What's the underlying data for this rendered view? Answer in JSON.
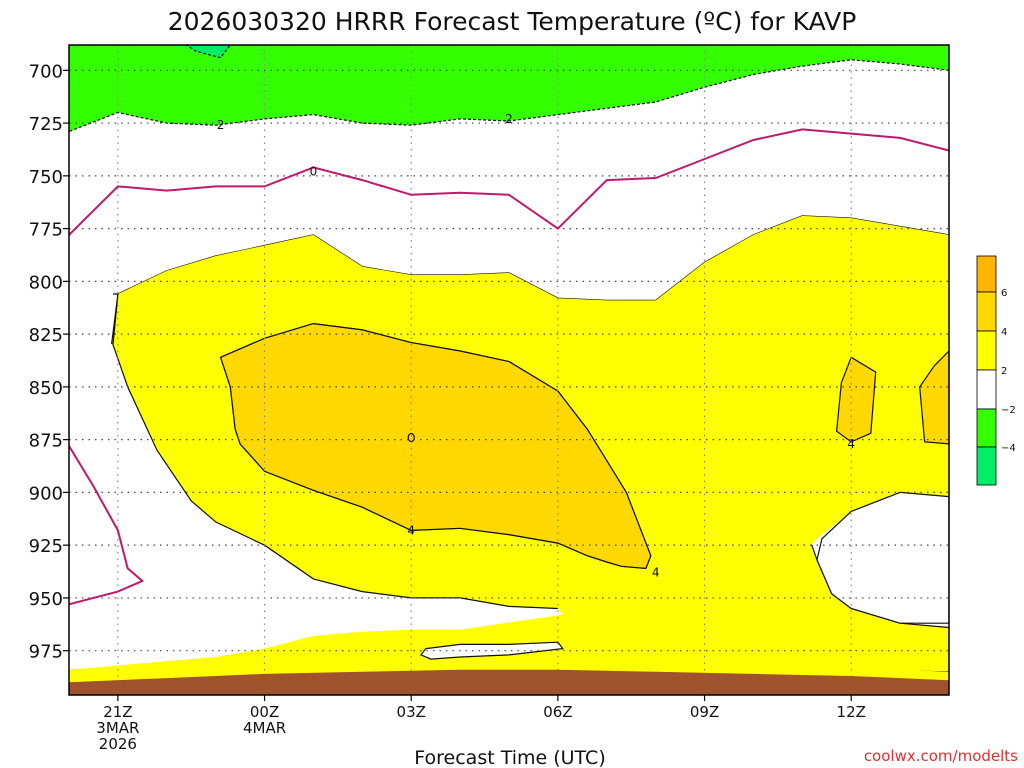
{
  "chart_data": {
    "type": "contour",
    "title": "2026030320 HRRR Forecast Temperature (ºC) for KAVP",
    "xlabel": "Forecast Time (UTC)",
    "ylabel": "",
    "credit": "coolwx.com/modelts",
    "x_range_hours": [
      -1,
      17
    ],
    "y_range_hpa": [
      688,
      996
    ],
    "y_ticks": [
      700,
      725,
      750,
      775,
      800,
      825,
      850,
      875,
      900,
      925,
      950,
      975
    ],
    "x_ticks": [
      {
        "hour": 0,
        "lines": [
          "21Z",
          "3MAR",
          "2026"
        ]
      },
      {
        "hour": 3,
        "lines": [
          "00Z",
          "4MAR"
        ]
      },
      {
        "hour": 6,
        "lines": [
          "03Z"
        ]
      },
      {
        "hour": 9,
        "lines": [
          "06Z"
        ]
      },
      {
        "hour": 12,
        "lines": [
          "09Z"
        ]
      },
      {
        "hour": 15,
        "lines": [
          "12Z"
        ]
      }
    ],
    "colorbar": {
      "levels": [
        6,
        4,
        2,
        -2,
        -4
      ],
      "labels": [
        "6",
        "4",
        "2",
        "−2",
        "−4"
      ],
      "colors": {
        "above6": "#ffb400",
        "4to6": "#ffd800",
        "2to4": "#ffff00",
        "m2to2": "#ffffff",
        "m4tom2": "#33ff00",
        "below_m4": "#00ee66"
      }
    },
    "colors": {
      "zero_contour": "#c0186a",
      "ground": "#a0522d",
      "contour_line": "#111111"
    },
    "contour_labels": [
      {
        "text": "2",
        "hour": 2.1,
        "hpa": 726
      },
      {
        "text": "2",
        "hour": 8.0,
        "hpa": 723
      },
      {
        "text": "0",
        "hour": 4.0,
        "hpa": 748
      },
      {
        "text": "4",
        "hour": 6.0,
        "hpa": 918
      },
      {
        "text": "4",
        "hour": 11.0,
        "hpa": 938
      },
      {
        "text": "4",
        "hour": 15.0,
        "hpa": 877
      }
    ],
    "regions": [
      {
        "name": "green-region-top",
        "fill": "#33ff00",
        "stroke": "#111111",
        "dash": true,
        "points": [
          [
            -1,
            688
          ],
          [
            17,
            688
          ],
          [
            17,
            700
          ],
          [
            16,
            697
          ],
          [
            15,
            695
          ],
          [
            14,
            698
          ],
          [
            13,
            702
          ],
          [
            12,
            708
          ],
          [
            11,
            715
          ],
          [
            10,
            718
          ],
          [
            9,
            721
          ],
          [
            8,
            724
          ],
          [
            7,
            723
          ],
          [
            6,
            726
          ],
          [
            5,
            725
          ],
          [
            4,
            721
          ],
          [
            3,
            723
          ],
          [
            2,
            726
          ],
          [
            1,
            725
          ],
          [
            0,
            720
          ],
          [
            -1,
            729
          ]
        ]
      },
      {
        "name": "green-patch-top-left",
        "fill": "#00ee66",
        "stroke": "#111111",
        "dash": true,
        "points": [
          [
            1.4,
            688
          ],
          [
            2.3,
            688
          ],
          [
            2.1,
            694
          ],
          [
            1.6,
            691
          ]
        ]
      },
      {
        "name": "yellow-region",
        "fill": "#ffff00",
        "stroke": "#111111",
        "dash": false,
        "points": [
          [
            0,
            806
          ],
          [
            1,
            795
          ],
          [
            2,
            788
          ],
          [
            3,
            783
          ],
          [
            4,
            778
          ],
          [
            5,
            793
          ],
          [
            6,
            797
          ],
          [
            7,
            797
          ],
          [
            8,
            796
          ],
          [
            9,
            808
          ],
          [
            10,
            809
          ],
          [
            11,
            809
          ],
          [
            12,
            791
          ],
          [
            13,
            778
          ],
          [
            14,
            769
          ],
          [
            15,
            770
          ],
          [
            16,
            774
          ],
          [
            17,
            778
          ],
          [
            17,
            902
          ],
          [
            16,
            901
          ],
          [
            15,
            903
          ],
          [
            14,
            912
          ],
          [
            14.3,
            932
          ],
          [
            14.6,
            948
          ],
          [
            15,
            955
          ],
          [
            16,
            962
          ],
          [
            17,
            964
          ],
          [
            17,
            985
          ],
          [
            10,
            982
          ],
          [
            8,
            981
          ],
          [
            6,
            980
          ],
          [
            4,
            980
          ],
          [
            2,
            982
          ],
          [
            -1,
            985
          ],
          [
            -1,
            984
          ],
          [
            0.7,
            983
          ],
          [
            1,
            955
          ],
          [
            2,
            960
          ],
          [
            3,
            947
          ],
          [
            4,
            936
          ],
          [
            5,
            941
          ],
          [
            6,
            952
          ],
          [
            7,
            948
          ],
          [
            8,
            962
          ],
          [
            9,
            981
          ],
          [
            11,
            984
          ],
          [
            12,
            990
          ],
          [
            -1,
            990
          ]
        ]
      },
      {
        "name": "yellow-region-lower",
        "fill": "#ffff00",
        "stroke": "none",
        "dash": false,
        "points": [
          [
            -0.1,
            830
          ],
          [
            0.2,
            850
          ],
          [
            0.8,
            880
          ],
          [
            1.5,
            904
          ],
          [
            2,
            914
          ],
          [
            3,
            925
          ],
          [
            4,
            941
          ],
          [
            5,
            947
          ],
          [
            6,
            950
          ],
          [
            7,
            950
          ],
          [
            8,
            954
          ],
          [
            9,
            955
          ],
          [
            9.1,
            958
          ],
          [
            7,
            965
          ],
          [
            6,
            965
          ],
          [
            5,
            966
          ],
          [
            4,
            968
          ],
          [
            3,
            974
          ],
          [
            2,
            978
          ],
          [
            1,
            980
          ],
          [
            -1,
            984
          ],
          [
            -1,
            996
          ],
          [
            17,
            996
          ],
          [
            17,
            990
          ],
          [
            17,
            985
          ],
          [
            16,
            984
          ],
          [
            15,
            980
          ],
          [
            14,
            972
          ],
          [
            14,
            930
          ],
          [
            14.3,
            922
          ],
          [
            15,
            909
          ],
          [
            16,
            900
          ],
          [
            17,
            902
          ],
          [
            17,
            778
          ],
          [
            16,
            774
          ],
          [
            15,
            770
          ],
          [
            14,
            769
          ],
          [
            13,
            778
          ],
          [
            12,
            791
          ],
          [
            11,
            809
          ],
          [
            10,
            809
          ],
          [
            9,
            808
          ],
          [
            8,
            796
          ],
          [
            7,
            797
          ],
          [
            6,
            797
          ],
          [
            5,
            793
          ],
          [
            4,
            778
          ],
          [
            3,
            783
          ],
          [
            2,
            788
          ],
          [
            1,
            795
          ],
          [
            0,
            806
          ]
        ]
      },
      {
        "name": "orange-core",
        "fill": "#ffd800",
        "stroke": "#111111",
        "dash": false,
        "points": [
          [
            2.1,
            836
          ],
          [
            3,
            827
          ],
          [
            4,
            820
          ],
          [
            5,
            823
          ],
          [
            6,
            829
          ],
          [
            7,
            833
          ],
          [
            8,
            838
          ],
          [
            9,
            852
          ],
          [
            9.6,
            870
          ],
          [
            10,
            885
          ],
          [
            10.4,
            900
          ],
          [
            10.7,
            918
          ],
          [
            10.9,
            930
          ],
          [
            10.8,
            936
          ],
          [
            10.3,
            935
          ],
          [
            10,
            933
          ],
          [
            9.6,
            930
          ],
          [
            9,
            924
          ],
          [
            8,
            920
          ],
          [
            7,
            917
          ],
          [
            6,
            918
          ],
          [
            5,
            907
          ],
          [
            4,
            899
          ],
          [
            3,
            890
          ],
          [
            2.5,
            877
          ],
          [
            2.4,
            870
          ],
          [
            2.3,
            850
          ]
        ]
      },
      {
        "name": "orange-patch-right",
        "fill": "#ffd800",
        "stroke": "#111111",
        "dash": false,
        "points": [
          [
            15,
            836
          ],
          [
            15.5,
            843
          ],
          [
            15.4,
            872
          ],
          [
            15,
            876
          ],
          [
            14.7,
            871
          ],
          [
            14.8,
            848
          ]
        ]
      },
      {
        "name": "orange-patch-edge",
        "fill": "#ffd800",
        "stroke": "#111111",
        "dash": false,
        "points": [
          [
            17,
            833
          ],
          [
            17,
            877
          ],
          [
            16.5,
            876
          ],
          [
            16.4,
            850
          ],
          [
            16.7,
            840
          ]
        ]
      }
    ],
    "zero_contours": [
      {
        "points": [
          [
            -1,
            778
          ],
          [
            0,
            755
          ],
          [
            1,
            757
          ],
          [
            2,
            755
          ],
          [
            3,
            755
          ],
          [
            4,
            746
          ],
          [
            5,
            752
          ],
          [
            6,
            759
          ],
          [
            7,
            758
          ],
          [
            8,
            759
          ],
          [
            9,
            775
          ],
          [
            10,
            752
          ],
          [
            11,
            751
          ],
          [
            12,
            742
          ],
          [
            13,
            733
          ],
          [
            14,
            728
          ],
          [
            15,
            730
          ],
          [
            16,
            732
          ],
          [
            17,
            738
          ]
        ]
      },
      {
        "points": [
          [
            -1,
            878
          ],
          [
            -0.5,
            897
          ],
          [
            0,
            918
          ],
          [
            0.2,
            936
          ],
          [
            0.5,
            942
          ],
          [
            0,
            947
          ],
          [
            -1,
            953
          ]
        ]
      }
    ],
    "white_pockets": [
      {
        "points": [
          [
            6.3,
            974
          ],
          [
            7,
            972
          ],
          [
            8,
            972
          ],
          [
            9,
            971
          ],
          [
            9.1,
            974
          ],
          [
            8,
            977
          ],
          [
            7,
            978
          ],
          [
            6.4,
            979
          ],
          [
            6.2,
            977
          ]
        ]
      }
    ]
  }
}
